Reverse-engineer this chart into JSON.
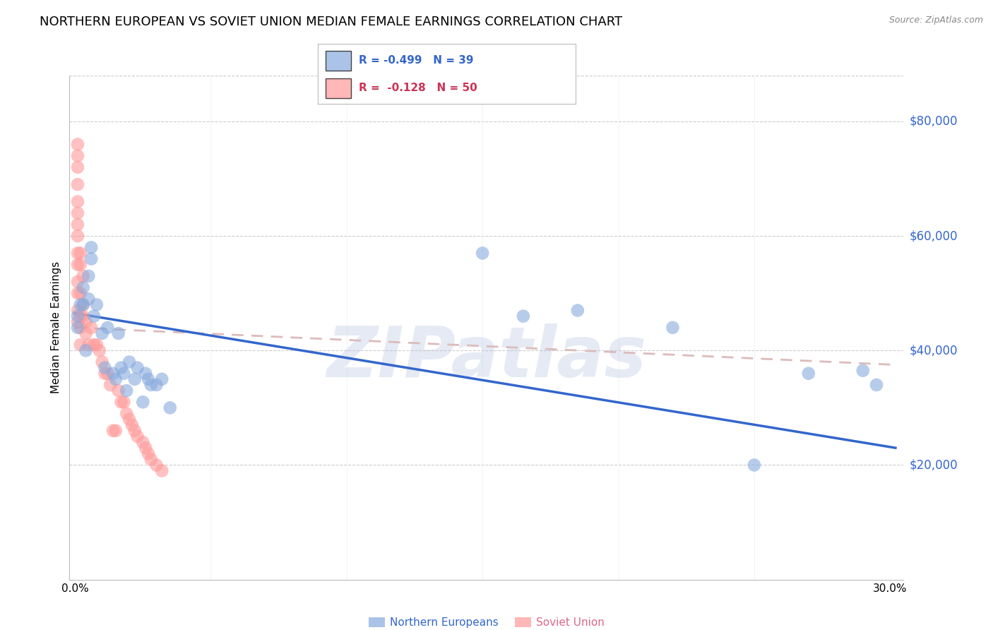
{
  "title": "NORTHERN EUROPEAN VS SOVIET UNION MEDIAN FEMALE EARNINGS CORRELATION CHART",
  "source": "Source: ZipAtlas.com",
  "ylabel": "Median Female Earnings",
  "ytick_labels": [
    "$20,000",
    "$40,000",
    "$60,000",
    "$80,000"
  ],
  "ytick_values": [
    20000,
    40000,
    60000,
    80000
  ],
  "ymin": 0,
  "ymax": 88000,
  "xmin": -0.002,
  "xmax": 0.305,
  "legend1_text": "R = -0.499   N = 39",
  "legend2_text": "R =  -0.128   N = 50",
  "legend_label1": "Northern Europeans",
  "legend_label2": "Soviet Union",
  "watermark": "ZIPatlas",
  "blue_color": "#88AADD",
  "pink_color": "#FF9999",
  "trendline_blue_color": "#3366CC",
  "trendline_pink_color": "#DDBBBB",
  "background_color": "#FFFFFF",
  "blue_points_x": [
    0.001,
    0.001,
    0.002,
    0.003,
    0.003,
    0.004,
    0.005,
    0.005,
    0.006,
    0.006,
    0.007,
    0.008,
    0.01,
    0.011,
    0.012,
    0.014,
    0.015,
    0.016,
    0.017,
    0.018,
    0.019,
    0.02,
    0.022,
    0.023,
    0.025,
    0.026,
    0.027,
    0.028,
    0.03,
    0.032,
    0.035,
    0.15,
    0.165,
    0.185,
    0.22,
    0.25,
    0.27,
    0.29,
    0.295
  ],
  "blue_points_y": [
    46000,
    44000,
    48000,
    51000,
    48000,
    40000,
    53000,
    49000,
    58000,
    56000,
    46000,
    48000,
    43000,
    37000,
    44000,
    36000,
    35000,
    43000,
    37000,
    36000,
    33000,
    38000,
    35000,
    37000,
    31000,
    36000,
    35000,
    34000,
    34000,
    35000,
    30000,
    57000,
    46000,
    47000,
    44000,
    20000,
    36000,
    36500,
    34000
  ],
  "pink_points_x": [
    0.001,
    0.001,
    0.001,
    0.001,
    0.001,
    0.001,
    0.001,
    0.001,
    0.001,
    0.001,
    0.001,
    0.001,
    0.001,
    0.001,
    0.002,
    0.002,
    0.002,
    0.002,
    0.002,
    0.002,
    0.003,
    0.003,
    0.003,
    0.004,
    0.004,
    0.005,
    0.006,
    0.007,
    0.008,
    0.009,
    0.01,
    0.011,
    0.012,
    0.013,
    0.014,
    0.015,
    0.016,
    0.017,
    0.018,
    0.019,
    0.02,
    0.021,
    0.022,
    0.023,
    0.025,
    0.026,
    0.027,
    0.028,
    0.03,
    0.032
  ],
  "pink_points_y": [
    76000,
    74000,
    72000,
    69000,
    66000,
    64000,
    62000,
    60000,
    57000,
    55000,
    52000,
    50000,
    47000,
    45000,
    57000,
    55000,
    50000,
    46000,
    44000,
    41000,
    53000,
    48000,
    46000,
    45000,
    43000,
    41000,
    44000,
    41000,
    41000,
    40000,
    38000,
    36000,
    36000,
    34000,
    26000,
    26000,
    33000,
    31000,
    31000,
    29000,
    28000,
    27000,
    26000,
    25000,
    24000,
    23000,
    22000,
    21000,
    20000,
    19000
  ],
  "blue_trendline_x": [
    0.0,
    0.302
  ],
  "blue_trendline_y": [
    46500,
    23000
  ],
  "pink_trendline_x": [
    0.0,
    0.302
  ],
  "pink_trendline_y": [
    44000,
    37500
  ],
  "grid_color": "#CCCCCC",
  "title_fontsize": 13,
  "axis_label_fontsize": 11,
  "tick_fontsize": 11,
  "watermark_color": "#AABBDD",
  "watermark_alpha": 0.3
}
